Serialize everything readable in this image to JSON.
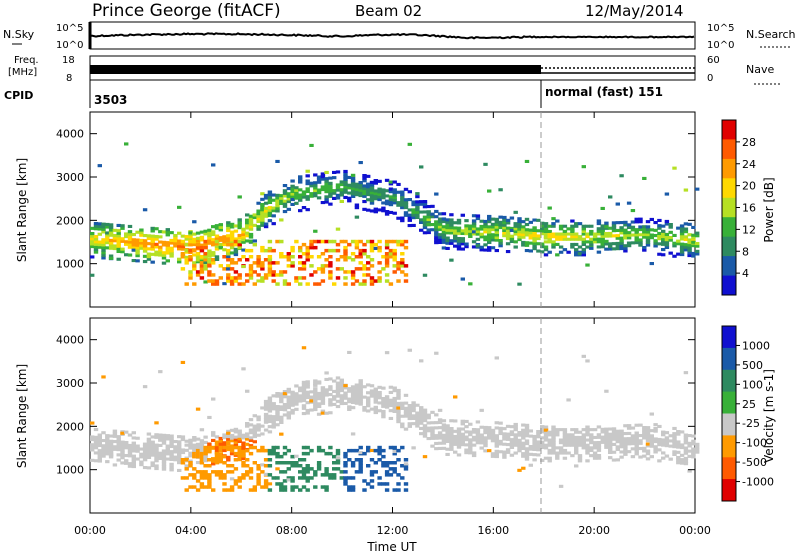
{
  "header": {
    "station": "Prince George (fitACF)",
    "beam": "Beam 02",
    "date": "12/May/2014"
  },
  "noise_panel": {
    "left_label": "N.Sky",
    "right_label": "N.Search",
    "left_ticks": [
      "10^5",
      "10^0"
    ],
    "right_ticks": [
      "10^5",
      "10^0"
    ]
  },
  "freq_panel": {
    "left_label_1": "Freq.",
    "left_label_2": "[MHz]",
    "left_ticks": [
      "18",
      "8"
    ],
    "right_label": "Nave",
    "right_ticks": [
      "60",
      "0"
    ]
  },
  "cpid_panel": {
    "label": "CPID",
    "value_1": "3503",
    "value_2": "normal (fast) 151"
  },
  "power_panel": {
    "ylabel": "Slant Range [km]",
    "yticks": [
      "4000",
      "3000",
      "2000",
      "1000"
    ],
    "colorbar_label": "Power [dB]",
    "colorbar_ticks": [
      "28",
      "24",
      "20",
      "16",
      "12",
      "8",
      "4"
    ],
    "colorbar_colors": [
      "#e00000",
      "#ff5a00",
      "#ff9a00",
      "#ffd800",
      "#b6e024",
      "#38b038",
      "#2e8a60",
      "#1a5aa8",
      "#1010d0"
    ]
  },
  "velocity_panel": {
    "ylabel": "Slant Range [km]",
    "yticks": [
      "4000",
      "3000",
      "2000",
      "1000"
    ],
    "colorbar_label": "Velocity [m s-1]",
    "colorbar_ticks": [
      "1000",
      "500",
      "100",
      "25",
      "-25",
      "-100",
      "-500",
      "-1000"
    ],
    "colorbar_colors": [
      "#1010d0",
      "#1a5aa8",
      "#2e8a60",
      "#38b038",
      "#c8c8c8",
      "#ff9a00",
      "#ff5a00",
      "#e00000"
    ]
  },
  "xaxis": {
    "label": "Time UT",
    "ticks": [
      "00:00",
      "04:00",
      "08:00",
      "12:00",
      "16:00",
      "20:00",
      "00:00"
    ]
  },
  "chart_data": {
    "type": "heatmap",
    "title": "Prince George (fitACF) Beam 02 12/May/2014",
    "xlabel": "Time UT",
    "ylabel": "Slant Range [km]",
    "xlim_hours": [
      0,
      24
    ],
    "ylim_km": [
      0,
      4500
    ],
    "cpid_change_hour": 18,
    "power_db_range": [
      0,
      30
    ],
    "velocity_range_ms": [
      -1000,
      1000
    ],
    "main_echo_band_km": [
      {
        "t": 0,
        "center": 1550,
        "power": 18
      },
      {
        "t": 2,
        "center": 1450,
        "power": 22
      },
      {
        "t": 4,
        "center": 1350,
        "power": 24
      },
      {
        "t": 6,
        "center": 1650,
        "power": 20
      },
      {
        "t": 7,
        "center": 2250,
        "power": 16
      },
      {
        "t": 8,
        "center": 2600,
        "power": 14
      },
      {
        "t": 10,
        "center": 2750,
        "power": 12
      },
      {
        "t": 12,
        "center": 2500,
        "power": 10
      },
      {
        "t": 14,
        "center": 1750,
        "power": 14
      },
      {
        "t": 16,
        "center": 1700,
        "power": 16
      },
      {
        "t": 18,
        "center": 1600,
        "power": 18
      },
      {
        "t": 20,
        "center": 1600,
        "power": 16
      },
      {
        "t": 22,
        "center": 1650,
        "power": 14
      },
      {
        "t": 24,
        "center": 1500,
        "power": 16
      }
    ]
  }
}
